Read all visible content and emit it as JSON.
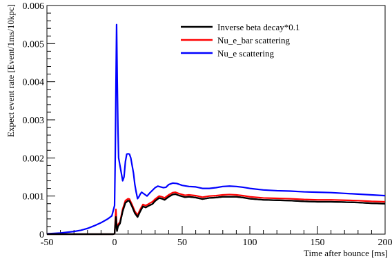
{
  "chart_data": {
    "type": "line",
    "xlabel": "Time after bounce [ms]",
    "ylabel": "Expect event rate [Event/1ms/10kpc]",
    "xlim": [
      -50,
      200
    ],
    "ylim": [
      0,
      0.006
    ],
    "grid": false,
    "legend_placement": "top-right",
    "x_ticks": [
      -50,
      0,
      50,
      100,
      150,
      200
    ],
    "x_tick_labels": [
      "-50",
      "0",
      "50",
      "100",
      "150",
      "200"
    ],
    "y_ticks": [
      0,
      0.001,
      0.002,
      0.003,
      0.004,
      0.005,
      0.006
    ],
    "y_tick_labels": [
      "0",
      "0.001",
      "0.002",
      "0.003",
      "0.004",
      "0.005",
      "0.006"
    ],
    "series": [
      {
        "name": "Inverse beta decay*0.1",
        "color": "#000000",
        "points": [
          [
            -50,
            0
          ],
          [
            -1,
            0
          ],
          [
            0,
            1e-05
          ],
          [
            1,
            0.00045
          ],
          [
            1.8,
            8e-05
          ],
          [
            2.5,
            0.0002
          ],
          [
            4,
            0.00028
          ],
          [
            6,
            0.0006
          ],
          [
            8,
            0.00082
          ],
          [
            10,
            0.00088
          ],
          [
            11,
            0.00087
          ],
          [
            13,
            0.00072
          ],
          [
            15,
            0.00055
          ],
          [
            17,
            0.00045
          ],
          [
            19,
            0.0006
          ],
          [
            21,
            0.00073
          ],
          [
            23,
            0.0007
          ],
          [
            25,
            0.00074
          ],
          [
            28,
            0.00079
          ],
          [
            30,
            0.00087
          ],
          [
            33,
            0.00095
          ],
          [
            35,
            0.00093
          ],
          [
            37,
            0.0009
          ],
          [
            40,
            0.00098
          ],
          [
            43,
            0.00104
          ],
          [
            45,
            0.00105
          ],
          [
            48,
            0.00101
          ],
          [
            52,
            0.00097
          ],
          [
            55,
            0.00098
          ],
          [
            60,
            0.00096
          ],
          [
            65,
            0.00092
          ],
          [
            70,
            0.00095
          ],
          [
            75,
            0.00096
          ],
          [
            80,
            0.00098
          ],
          [
            85,
            0.00098
          ],
          [
            90,
            0.00098
          ],
          [
            95,
            0.00096
          ],
          [
            100,
            0.00093
          ],
          [
            110,
            0.0009
          ],
          [
            120,
            0.00089
          ],
          [
            130,
            0.00088
          ],
          [
            140,
            0.00086
          ],
          [
            150,
            0.00085
          ],
          [
            160,
            0.00085
          ],
          [
            170,
            0.00084
          ],
          [
            180,
            0.00083
          ],
          [
            190,
            0.00081
          ],
          [
            200,
            0.0008
          ]
        ]
      },
      {
        "name": "Nu_e_bar scattering",
        "color": "#ff0000",
        "points": [
          [
            -50,
            0
          ],
          [
            -1,
            0
          ],
          [
            0,
            1e-05
          ],
          [
            1,
            0.00065
          ],
          [
            1.8,
            0.0001
          ],
          [
            2.5,
            0.00025
          ],
          [
            4,
            0.00032
          ],
          [
            6,
            0.00066
          ],
          [
            8,
            0.00088
          ],
          [
            10,
            0.00093
          ],
          [
            11,
            0.00092
          ],
          [
            13,
            0.00077
          ],
          [
            15,
            0.0006
          ],
          [
            17,
            0.0005
          ],
          [
            19,
            0.00065
          ],
          [
            21,
            0.00078
          ],
          [
            23,
            0.00075
          ],
          [
            25,
            0.00079
          ],
          [
            28,
            0.00085
          ],
          [
            30,
            0.00092
          ],
          [
            33,
            0.001
          ],
          [
            35,
            0.00098
          ],
          [
            37,
            0.00095
          ],
          [
            40,
            0.00103
          ],
          [
            43,
            0.00109
          ],
          [
            45,
            0.0011
          ],
          [
            48,
            0.00106
          ],
          [
            52,
            0.00102
          ],
          [
            55,
            0.00103
          ],
          [
            60,
            0.00101
          ],
          [
            65,
            0.00097
          ],
          [
            70,
            0.001
          ],
          [
            75,
            0.00101
          ],
          [
            80,
            0.00103
          ],
          [
            85,
            0.00104
          ],
          [
            90,
            0.00103
          ],
          [
            95,
            0.00101
          ],
          [
            100,
            0.00098
          ],
          [
            110,
            0.00095
          ],
          [
            120,
            0.00094
          ],
          [
            130,
            0.00093
          ],
          [
            140,
            0.00091
          ],
          [
            150,
            0.0009
          ],
          [
            160,
            0.0009
          ],
          [
            170,
            0.00089
          ],
          [
            180,
            0.00088
          ],
          [
            190,
            0.00086
          ],
          [
            200,
            0.00085
          ]
        ]
      },
      {
        "name": "Nu_e scattering",
        "color": "#0000ff",
        "points": [
          [
            -50,
            1e-05
          ],
          [
            -40,
            3e-05
          ],
          [
            -30,
            7e-05
          ],
          [
            -25,
            0.0001
          ],
          [
            -20,
            0.00015
          ],
          [
            -15,
            0.00022
          ],
          [
            -10,
            0.0003
          ],
          [
            -5,
            0.0004
          ],
          [
            -2,
            0.00048
          ],
          [
            0,
            0.00075
          ],
          [
            0.5,
            0.002
          ],
          [
            1,
            0.0038
          ],
          [
            1.5,
            0.0055
          ],
          [
            2,
            0.004
          ],
          [
            2.5,
            0.0028
          ],
          [
            3,
            0.002
          ],
          [
            4,
            0.0018
          ],
          [
            5,
            0.0016
          ],
          [
            6,
            0.0014
          ],
          [
            7,
            0.0015
          ],
          [
            8,
            0.0019
          ],
          [
            9,
            0.0021
          ],
          [
            10,
            0.00211
          ],
          [
            11,
            0.0021
          ],
          [
            12,
            0.002
          ],
          [
            13,
            0.0018
          ],
          [
            14,
            0.0016
          ],
          [
            15,
            0.0013
          ],
          [
            16,
            0.0011
          ],
          [
            17,
            0.00093
          ],
          [
            18,
            0.00098
          ],
          [
            19,
            0.00105
          ],
          [
            20,
            0.0011
          ],
          [
            22,
            0.00105
          ],
          [
            24,
            0.001
          ],
          [
            26,
            0.00108
          ],
          [
            28,
            0.00115
          ],
          [
            30,
            0.00122
          ],
          [
            32,
            0.00126
          ],
          [
            34,
            0.00124
          ],
          [
            36,
            0.00122
          ],
          [
            38,
            0.00123
          ],
          [
            40,
            0.0013
          ],
          [
            43,
            0.00134
          ],
          [
            46,
            0.00133
          ],
          [
            50,
            0.00128
          ],
          [
            55,
            0.00125
          ],
          [
            60,
            0.00124
          ],
          [
            65,
            0.0012
          ],
          [
            70,
            0.0012
          ],
          [
            75,
            0.00122
          ],
          [
            80,
            0.00125
          ],
          [
            85,
            0.00126
          ],
          [
            90,
            0.00125
          ],
          [
            95,
            0.00123
          ],
          [
            100,
            0.0012
          ],
          [
            110,
            0.00116
          ],
          [
            120,
            0.00114
          ],
          [
            130,
            0.00113
          ],
          [
            140,
            0.00111
          ],
          [
            150,
            0.0011
          ],
          [
            160,
            0.00109
          ],
          [
            170,
            0.00107
          ],
          [
            180,
            0.00105
          ],
          [
            190,
            0.00103
          ],
          [
            200,
            0.00101
          ]
        ]
      }
    ]
  }
}
